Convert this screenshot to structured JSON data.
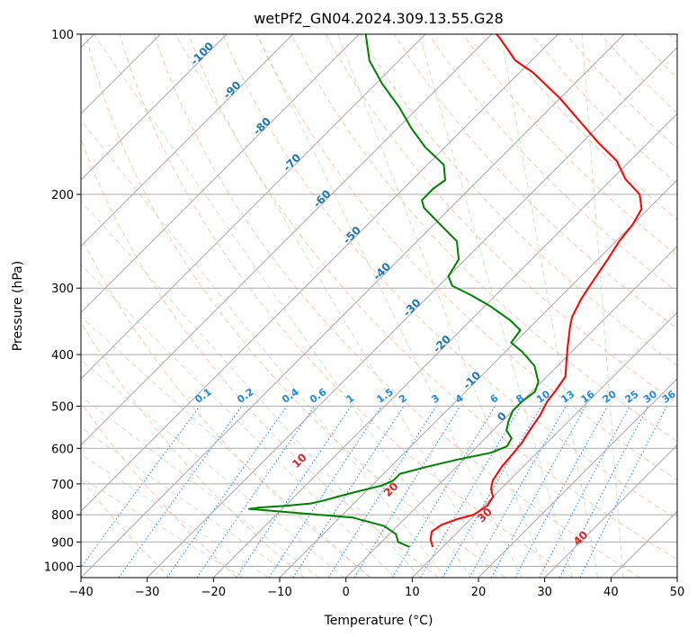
{
  "chart_data": {
    "type": "line",
    "title": "wetPf2_GN04.2024.309.13.55.G28",
    "xlabel": "Temperature (°C)",
    "ylabel": "Pressure (hPa)",
    "xlim": [
      -40,
      50
    ],
    "ylim": [
      1050,
      100
    ],
    "y_scale": "log",
    "grid": true,
    "x_ticks": [
      -40,
      -30,
      -20,
      -10,
      0,
      10,
      20,
      30,
      40,
      50
    ],
    "y_ticks": [
      100,
      200,
      300,
      400,
      500,
      600,
      700,
      800,
      900,
      1000
    ],
    "colors": {
      "temperature": "#ff0000",
      "dewpoint": "#008000",
      "isotherm_grid": "#aaaaaa",
      "dry_adiabat": "#f4a582",
      "moist_adiabat": "#a6d8a0",
      "mixing_ratio": "#1e88e5",
      "isotherm_label": "#1f77b4",
      "dry_adiabat_label": "#d62728"
    },
    "series": [
      {
        "key": "temperature",
        "points": [
          [
            8.5,
            920
          ],
          [
            7.0,
            890
          ],
          [
            6.0,
            860
          ],
          [
            6.5,
            835
          ],
          [
            8.0,
            815
          ],
          [
            9.8,
            800
          ],
          [
            10.5,
            770
          ],
          [
            10.0,
            740
          ],
          [
            8.5,
            715
          ],
          [
            7.5,
            690
          ],
          [
            6.8,
            650
          ],
          [
            6.5,
            615
          ],
          [
            6.2,
            585
          ],
          [
            5.5,
            555
          ],
          [
            4.8,
            520
          ],
          [
            3.8,
            490
          ],
          [
            3.5,
            470
          ],
          [
            2.8,
            440
          ],
          [
            0.5,
            410
          ],
          [
            -1.5,
            385
          ],
          [
            -4.0,
            355
          ],
          [
            -5.2,
            340
          ],
          [
            -6.5,
            315
          ],
          [
            -7.5,
            290
          ],
          [
            -8.5,
            265
          ],
          [
            -9.5,
            245
          ],
          [
            -10.0,
            228
          ],
          [
            -11.0,
            213
          ],
          [
            -13.5,
            200
          ],
          [
            -18.0,
            187
          ],
          [
            -22.0,
            173
          ],
          [
            -27.5,
            160
          ],
          [
            -33.0,
            147
          ],
          [
            -40.0,
            132
          ],
          [
            -48.0,
            118
          ],
          [
            -52.5,
            112
          ],
          [
            -58.0,
            102
          ],
          [
            -60.5,
            98
          ]
        ]
      },
      {
        "key": "dewpoint",
        "points": [
          [
            5.0,
            920
          ],
          [
            2.5,
            900
          ],
          [
            1.0,
            870
          ],
          [
            -2.0,
            840
          ],
          [
            -8.0,
            810
          ],
          [
            -18.0,
            792
          ],
          [
            -25.0,
            780
          ],
          [
            -23.5,
            775
          ],
          [
            -20.0,
            770
          ],
          [
            -16.5,
            762
          ],
          [
            -15.0,
            752
          ],
          [
            -13.5,
            740
          ],
          [
            -11.5,
            725
          ],
          [
            -8.5,
            705
          ],
          [
            -7.5,
            690
          ],
          [
            -7.5,
            670
          ],
          [
            -4.5,
            650
          ],
          [
            -1.0,
            630
          ],
          [
            3.0,
            612
          ],
          [
            4.5,
            595
          ],
          [
            4.0,
            575
          ],
          [
            2.0,
            555
          ],
          [
            1.0,
            535
          ],
          [
            0.0,
            510
          ],
          [
            0.0,
            490
          ],
          [
            0.5,
            470
          ],
          [
            -0.5,
            450
          ],
          [
            -3.5,
            420
          ],
          [
            -7.5,
            395
          ],
          [
            -10.5,
            380
          ],
          [
            -11.0,
            360
          ],
          [
            -14.0,
            345
          ],
          [
            -19.0,
            325
          ],
          [
            -23.5,
            310
          ],
          [
            -28.0,
            297
          ],
          [
            -30.0,
            285
          ],
          [
            -31.0,
            265
          ],
          [
            -34.0,
            245
          ],
          [
            -39.0,
            228
          ],
          [
            -44.0,
            212
          ],
          [
            -45.5,
            205
          ],
          [
            -45.5,
            195
          ],
          [
            -45.0,
            188
          ],
          [
            -47.5,
            176
          ],
          [
            -53.0,
            163
          ],
          [
            -58.0,
            150
          ],
          [
            -63.0,
            137
          ],
          [
            -69.0,
            124
          ],
          [
            -74.5,
            112
          ],
          [
            -79.0,
            100
          ]
        ]
      }
    ],
    "mixing_ratio_labels": [
      "0.1",
      "0.2",
      "0.4",
      "0.6",
      "1",
      "1.5",
      "2",
      "3",
      "4",
      "6",
      "8",
      "10",
      "13",
      "16",
      "20",
      "25",
      "30",
      "36"
    ],
    "mixing_ratio_values": [
      0.1,
      0.2,
      0.4,
      0.6,
      1,
      1.5,
      2,
      3,
      4,
      6,
      8,
      10,
      13,
      16,
      20,
      25,
      30,
      36
    ],
    "isotherm_labels": [
      {
        "text": "-100",
        "value": -100
      },
      {
        "text": "-90",
        "value": -90
      },
      {
        "text": "-80",
        "value": -80
      },
      {
        "text": "-70",
        "value": -70
      },
      {
        "text": "-60",
        "value": -60
      },
      {
        "text": "-50",
        "value": -50
      },
      {
        "text": "-40",
        "value": -40
      },
      {
        "text": "-30",
        "value": -30
      },
      {
        "text": "-20",
        "value": -20
      },
      {
        "text": "-10",
        "value": -10
      },
      {
        "text": "0",
        "value": 0
      }
    ],
    "dry_adiabat_labels": [
      {
        "text": "10",
        "value": 10
      },
      {
        "text": "20",
        "value": 20
      },
      {
        "text": "30",
        "value": 30
      },
      {
        "text": "40",
        "value": 40
      }
    ]
  }
}
